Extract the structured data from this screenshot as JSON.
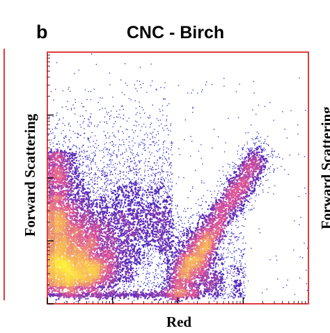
{
  "panel": {
    "letter": "b",
    "title": "CNC - Birch"
  },
  "neighbor_panel": {
    "ylabel_fragment": "Forward Scattering"
  },
  "chart_data": {
    "type": "scatter",
    "title": "CNC - Birch",
    "xlabel": "Red",
    "ylabel": "Forward Scattering",
    "xlim": [
      0,
      100
    ],
    "ylim": [
      0,
      100
    ],
    "grid": false,
    "legend": "none",
    "frame_color": "#e03c3c",
    "colormap": [
      "#2323c8",
      "#6a2fb8",
      "#d9509a",
      "#f6b25a",
      "#fff23a"
    ],
    "density_peak": {
      "x": 12,
      "y": 8
    }
  }
}
